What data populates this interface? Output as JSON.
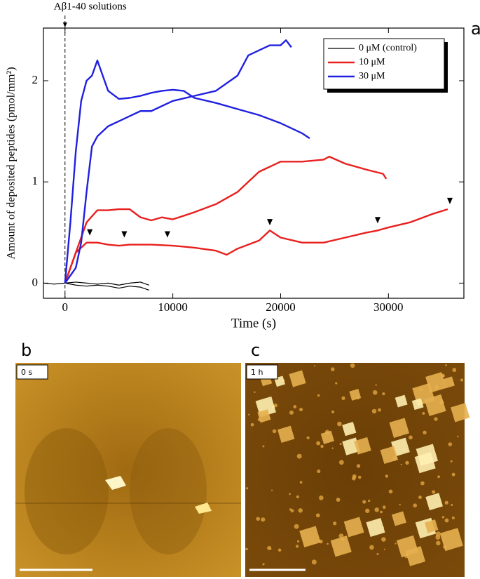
{
  "chart_data": {
    "type": "line",
    "panel": "a",
    "annotation": {
      "text": "Aβ1-40 solutions",
      "x": 0
    },
    "xlabel": "Time (s)",
    "ylabel": "Amount of deposited peptides (pmol/mm²)",
    "xlim": [
      -2000,
      37000
    ],
    "ylim": [
      -0.15,
      2.52
    ],
    "xticks": [
      0,
      10000,
      20000,
      30000
    ],
    "yticks": [
      0,
      1,
      2
    ],
    "legend": "upper right",
    "series": [
      {
        "name": "0 μM (control)",
        "color": "#000000",
        "runs": [
          {
            "x": [
              -2000,
              -1000,
              0,
              1000,
              2000,
              3000,
              4000,
              5000,
              6000,
              7000,
              7800
            ],
            "values": [
              0,
              -0.01,
              0,
              0.01,
              0,
              -0.01,
              0,
              -0.02,
              0,
              0.01,
              -0.02
            ]
          },
          {
            "x": [
              0,
              1000,
              2000,
              3000,
              4000,
              5000,
              6000,
              7000,
              7800
            ],
            "values": [
              0,
              -0.02,
              -0.03,
              -0.02,
              -0.03,
              -0.05,
              -0.03,
              -0.04,
              -0.07
            ]
          }
        ]
      },
      {
        "name": "10 μM",
        "color": "#e8201e",
        "runs": [
          {
            "x": [
              0,
              1000,
              2000,
              3000,
              4000,
              5000,
              6000,
              7000,
              8000,
              9000,
              10000,
              12000,
              14000,
              16000,
              17000,
              18000,
              19000,
              20000,
              22000,
              24000,
              24500,
              26000,
              28000,
              29500,
              29800
            ],
            "values": [
              0,
              0.3,
              0.6,
              0.72,
              0.72,
              0.73,
              0.73,
              0.65,
              0.62,
              0.65,
              0.63,
              0.7,
              0.78,
              0.9,
              1.0,
              1.1,
              1.15,
              1.2,
              1.2,
              1.22,
              1.25,
              1.18,
              1.12,
              1.08,
              1.03
            ]
          },
          {
            "x": [
              0,
              1000,
              2000,
              3000,
              4000,
              5000,
              6000,
              8000,
              10000,
              12000,
              14000,
              15000,
              16000,
              18000,
              19000,
              20000,
              22000,
              24000,
              26000,
              28000,
              29000,
              30000,
              32000,
              34000,
              35500
            ],
            "values": [
              0,
              0.3,
              0.4,
              0.4,
              0.38,
              0.37,
              0.38,
              0.38,
              0.37,
              0.35,
              0.32,
              0.28,
              0.34,
              0.42,
              0.52,
              0.45,
              0.4,
              0.4,
              0.45,
              0.5,
              0.52,
              0.55,
              0.6,
              0.68,
              0.73
            ]
          }
        ]
      },
      {
        "name": "30 μM",
        "color": "#2020e0",
        "runs": [
          {
            "x": [
              0,
              500,
              1000,
              1500,
              2000,
              2500,
              3000,
              3500,
              4000,
              5000,
              6000,
              7000,
              8000,
              9000,
              10000,
              11000,
              12000,
              14000,
              16000,
              18000,
              20000,
              22000,
              22700
            ],
            "values": [
              0,
              0.6,
              1.3,
              1.8,
              2.0,
              2.05,
              2.2,
              2.05,
              1.9,
              1.82,
              1.83,
              1.85,
              1.88,
              1.9,
              1.91,
              1.9,
              1.83,
              1.78,
              1.72,
              1.66,
              1.58,
              1.48,
              1.43
            ]
          },
          {
            "x": [
              0,
              1000,
              1500,
              2000,
              2500,
              3000,
              4000,
              5000,
              6000,
              7000,
              8000,
              10000,
              12000,
              14000,
              16000,
              17000,
              18000,
              19000,
              20000,
              20500,
              21000
            ],
            "values": [
              0,
              0.15,
              0.4,
              0.9,
              1.35,
              1.45,
              1.55,
              1.6,
              1.65,
              1.7,
              1.7,
              1.8,
              1.85,
              1.9,
              2.05,
              2.25,
              2.3,
              2.35,
              2.35,
              2.4,
              2.33
            ]
          }
        ]
      }
    ],
    "arrowheads": {
      "x": [
        2300,
        5500,
        9500,
        19000,
        29000,
        35700
      ],
      "values": [
        0.47,
        0.45,
        0.45,
        0.57,
        0.59,
        0.78
      ]
    }
  },
  "images": [
    {
      "panel": "b",
      "label": "0 s"
    },
    {
      "panel": "c",
      "label": "1 h"
    }
  ]
}
